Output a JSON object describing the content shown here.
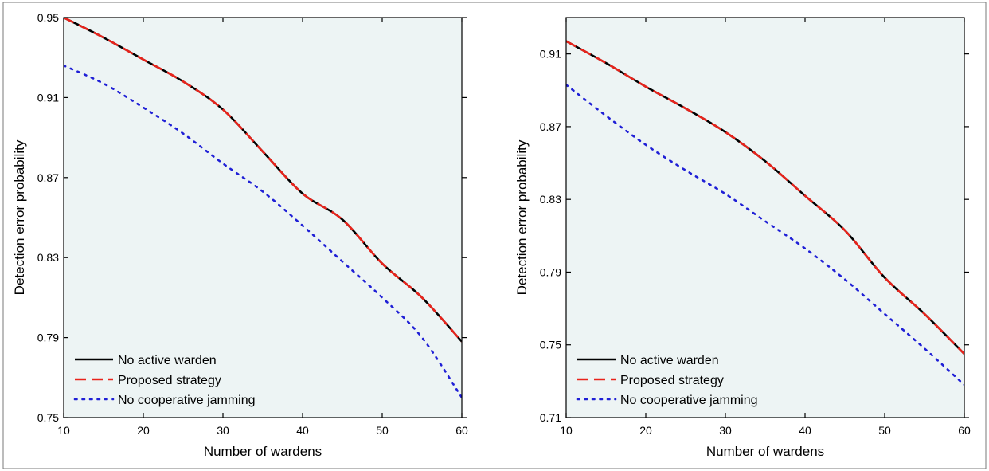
{
  "chart_data": [
    {
      "type": "line",
      "title": "",
      "xlabel": "Number of wardens",
      "ylabel": "Detection error probability",
      "xlim": [
        10,
        60
      ],
      "ylim": [
        0.75,
        0.95
      ],
      "xticks": [
        10,
        20,
        30,
        40,
        50,
        60
      ],
      "yticks": [
        0.75,
        0.79,
        0.83,
        0.87,
        0.91,
        0.95
      ],
      "ytick_labels": [
        "0.75",
        "0.79",
        "0.83",
        "0.87",
        "0.91",
        "0.95"
      ],
      "grid": false,
      "background": "#edf4f4",
      "legend_position": "bottom-left",
      "x": [
        10,
        15,
        20,
        25,
        30,
        35,
        40,
        45,
        50,
        55,
        60
      ],
      "series": [
        {
          "name": "No active warden",
          "color": "#000000",
          "style": "solid",
          "values": [
            0.95,
            0.94,
            0.929,
            0.918,
            0.904,
            0.883,
            0.862,
            0.849,
            0.827,
            0.81,
            0.788
          ]
        },
        {
          "name": "Proposed strategy",
          "color": "#e8231b",
          "style": "dashed",
          "values": [
            0.95,
            0.94,
            0.929,
            0.918,
            0.904,
            0.883,
            0.862,
            0.849,
            0.827,
            0.81,
            0.788
          ]
        },
        {
          "name": "No cooperative jamming",
          "color": "#1f1fd6",
          "style": "dotted",
          "values": [
            0.926,
            0.917,
            0.905,
            0.892,
            0.877,
            0.863,
            0.846,
            0.828,
            0.81,
            0.79,
            0.76
          ]
        }
      ]
    },
    {
      "type": "line",
      "title": "",
      "xlabel": "Number of wardens",
      "ylabel": "Detection error probability",
      "xlim": [
        10,
        60
      ],
      "ylim": [
        0.71,
        0.93
      ],
      "xticks": [
        10,
        20,
        30,
        40,
        50,
        60
      ],
      "yticks": [
        0.71,
        0.75,
        0.79,
        0.83,
        0.87,
        0.91
      ],
      "ytick_labels": [
        "0.71",
        "0.75",
        "0.79",
        "0.83",
        "0.87",
        "0.91"
      ],
      "grid": false,
      "background": "#edf4f4",
      "legend_position": "bottom-left",
      "x": [
        10,
        15,
        20,
        25,
        30,
        35,
        40,
        45,
        50,
        55,
        60
      ],
      "series": [
        {
          "name": "No active warden",
          "color": "#000000",
          "style": "solid",
          "values": [
            0.917,
            0.905,
            0.892,
            0.88,
            0.867,
            0.851,
            0.832,
            0.813,
            0.787,
            0.767,
            0.745
          ]
        },
        {
          "name": "Proposed strategy",
          "color": "#e8231b",
          "style": "dashed",
          "values": [
            0.917,
            0.905,
            0.892,
            0.88,
            0.867,
            0.851,
            0.832,
            0.813,
            0.787,
            0.767,
            0.745
          ]
        },
        {
          "name": "No cooperative jamming",
          "color": "#1f1fd6",
          "style": "dotted",
          "values": [
            0.893,
            0.876,
            0.86,
            0.846,
            0.833,
            0.818,
            0.803,
            0.786,
            0.767,
            0.748,
            0.728
          ]
        }
      ]
    }
  ]
}
